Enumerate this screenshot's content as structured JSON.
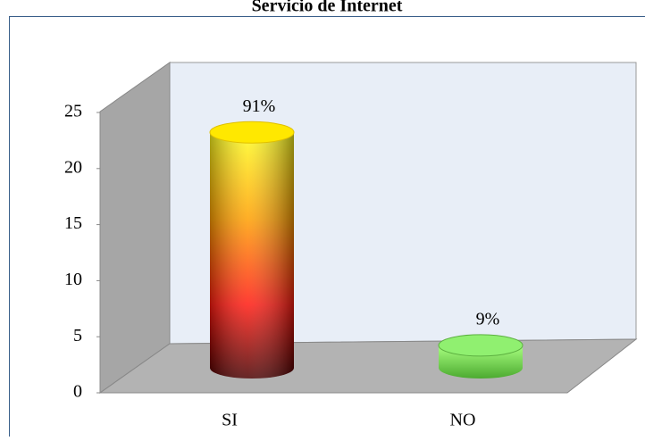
{
  "chart_data": {
    "type": "bar3d",
    "title": "Servicio de Internet",
    "categories": [
      "SI",
      "NO"
    ],
    "values": [
      21,
      2
    ],
    "value_labels": [
      "91%",
      "9%"
    ],
    "ylim": [
      0,
      25
    ],
    "yticks": [
      0,
      5,
      10,
      15,
      20,
      25
    ]
  }
}
